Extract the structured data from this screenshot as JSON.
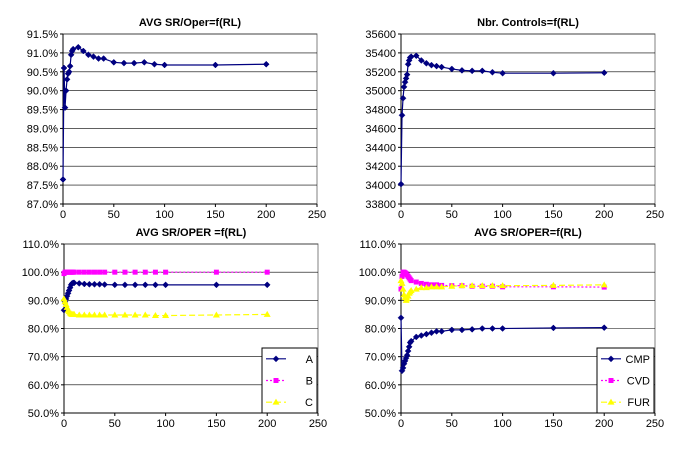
{
  "chart_data": [
    {
      "type": "line",
      "title": "AVG SR/Oper=f(RL)",
      "xlabel": "",
      "ylabel": "",
      "xlim": [
        0,
        250
      ],
      "ylim": [
        0.87,
        0.915
      ],
      "x_ticks": [
        0,
        50,
        100,
        150,
        200,
        250
      ],
      "y_ticks": [
        0.87,
        0.875,
        0.88,
        0.885,
        0.89,
        0.895,
        0.9,
        0.905,
        0.91,
        0.915
      ],
      "x_tick_labels": [
        "0",
        "50",
        "100",
        "150",
        "200",
        "250"
      ],
      "y_tick_labels": [
        "87.0%",
        "87.5%",
        "88.0%",
        "88.5%",
        "89.0%",
        "89.5%",
        "90.0%",
        "90.5%",
        "91.0%",
        "91.5%"
      ],
      "grid": "horizontal",
      "legend": "none",
      "series": [
        {
          "name": "",
          "color": "#000080",
          "marker": "diamond",
          "line_style": "solid",
          "x": [
            0,
            1,
            2,
            3,
            4,
            5,
            6,
            7,
            8,
            9,
            10,
            15,
            20,
            25,
            30,
            35,
            40,
            50,
            60,
            70,
            80,
            90,
            100,
            150,
            200
          ],
          "y": [
            0.8765,
            0.906,
            0.8955,
            0.9,
            0.903,
            0.9045,
            0.905,
            0.9065,
            0.9095,
            0.9105,
            0.911,
            0.9115,
            0.9105,
            0.9095,
            0.909,
            0.9085,
            0.9085,
            0.9075,
            0.9073,
            0.9073,
            0.9075,
            0.907,
            0.9068,
            0.9068,
            0.907
          ]
        }
      ]
    },
    {
      "type": "line",
      "title": "Nbr. Controls=f(RL)",
      "xlabel": "",
      "ylabel": "",
      "xlim": [
        0,
        250
      ],
      "ylim": [
        33800,
        35600
      ],
      "x_ticks": [
        0,
        50,
        100,
        150,
        200,
        250
      ],
      "y_ticks": [
        33800,
        34000,
        34200,
        34400,
        34600,
        34800,
        35000,
        35200,
        35400,
        35600
      ],
      "x_tick_labels": [
        "0",
        "50",
        "100",
        "150",
        "200",
        "250"
      ],
      "y_tick_labels": [
        "33800",
        "34000",
        "34200",
        "34400",
        "34600",
        "34800",
        "35000",
        "35200",
        "35400",
        "35600"
      ],
      "grid": "horizontal",
      "legend": "none",
      "series": [
        {
          "name": "",
          "color": "#000080",
          "marker": "diamond",
          "line_style": "solid",
          "x": [
            0,
            1,
            2,
            3,
            4,
            5,
            6,
            7,
            8,
            9,
            10,
            15,
            20,
            25,
            30,
            35,
            40,
            50,
            60,
            70,
            80,
            90,
            100,
            150,
            200
          ],
          "y": [
            34010,
            34740,
            34920,
            35040,
            35090,
            35130,
            35170,
            35280,
            35320,
            35350,
            35360,
            35370,
            35320,
            35290,
            35270,
            35260,
            35250,
            35230,
            35215,
            35210,
            35210,
            35195,
            35185,
            35185,
            35190
          ]
        }
      ]
    },
    {
      "type": "line",
      "title": "AVG SR/OPER =f(RL)",
      "xlabel": "",
      "ylabel": "",
      "xlim": [
        0,
        250
      ],
      "ylim": [
        0.5,
        1.1
      ],
      "x_ticks": [
        0,
        50,
        100,
        150,
        200,
        250
      ],
      "y_ticks": [
        0.5,
        0.6,
        0.7,
        0.8,
        0.9,
        1.0,
        1.1
      ],
      "x_tick_labels": [
        "0",
        "50",
        "100",
        "150",
        "200",
        "250"
      ],
      "y_tick_labels": [
        "50.0%",
        "60.0%",
        "70.0%",
        "80.0%",
        "90.0%",
        "100.0%",
        "110.0%"
      ],
      "grid": "horizontal",
      "legend": "bottom-right",
      "series": [
        {
          "name": "A",
          "color": "#000080",
          "marker": "diamond",
          "line_style": "solid",
          "x": [
            0,
            1,
            2,
            3,
            4,
            5,
            6,
            7,
            8,
            9,
            10,
            15,
            20,
            25,
            30,
            35,
            40,
            50,
            60,
            70,
            80,
            90,
            100,
            150,
            200
          ],
          "y": [
            0.865,
            0.895,
            0.905,
            0.915,
            0.925,
            0.935,
            0.945,
            0.955,
            0.96,
            0.962,
            0.962,
            0.96,
            0.958,
            0.957,
            0.957,
            0.957,
            0.956,
            0.955,
            0.955,
            0.955,
            0.955,
            0.955,
            0.955,
            0.955,
            0.955
          ]
        },
        {
          "name": "B",
          "color": "#ff00ff",
          "marker": "square",
          "line_style": "dotted",
          "x": [
            0,
            1,
            2,
            3,
            4,
            5,
            6,
            7,
            8,
            9,
            10,
            15,
            20,
            25,
            30,
            35,
            40,
            50,
            60,
            70,
            80,
            90,
            100,
            150,
            200
          ],
          "y": [
            0.995,
            1.0,
            1.0,
            1.0,
            1.0,
            1.0,
            1.0,
            1.0,
            1.0,
            1.0,
            1.0,
            1.0,
            1.0,
            1.0,
            1.0,
            1.0,
            1.0,
            1.0,
            1.0,
            1.0,
            1.0,
            1.0,
            1.0,
            1.0,
            1.0
          ]
        },
        {
          "name": "C",
          "color": "#ffff00",
          "marker": "triangle",
          "line_style": "dashed",
          "x": [
            0,
            1,
            2,
            3,
            4,
            5,
            6,
            7,
            8,
            9,
            10,
            15,
            20,
            25,
            30,
            35,
            40,
            50,
            60,
            70,
            80,
            90,
            100,
            150,
            200
          ],
          "y": [
            0.905,
            0.895,
            0.885,
            0.875,
            0.865,
            0.86,
            0.855,
            0.852,
            0.85,
            0.85,
            0.85,
            0.848,
            0.848,
            0.848,
            0.848,
            0.848,
            0.848,
            0.848,
            0.848,
            0.848,
            0.848,
            0.846,
            0.846,
            0.848,
            0.85
          ]
        }
      ]
    },
    {
      "type": "line",
      "title": "AVG SR/OPER=f(RL)",
      "xlabel": "",
      "ylabel": "",
      "xlim": [
        0,
        250
      ],
      "ylim": [
        0.5,
        1.1
      ],
      "x_ticks": [
        0,
        50,
        100,
        150,
        200,
        250
      ],
      "y_ticks": [
        0.5,
        0.6,
        0.7,
        0.8,
        0.9,
        1.0,
        1.1
      ],
      "x_tick_labels": [
        "0",
        "50",
        "100",
        "150",
        "200",
        "250"
      ],
      "y_tick_labels": [
        "50.0%",
        "60.0%",
        "70.0%",
        "80.0%",
        "90.0%",
        "100.0%",
        "110.0%"
      ],
      "grid": "horizontal",
      "legend": "bottom-right",
      "series": [
        {
          "name": "CMP",
          "color": "#000080",
          "marker": "diamond",
          "line_style": "solid",
          "x": [
            0,
            1,
            2,
            3,
            4,
            5,
            6,
            7,
            8,
            9,
            10,
            15,
            20,
            25,
            30,
            35,
            40,
            50,
            60,
            70,
            80,
            90,
            100,
            150,
            200
          ],
          "y": [
            0.838,
            0.65,
            0.66,
            0.675,
            0.685,
            0.695,
            0.705,
            0.72,
            0.735,
            0.75,
            0.755,
            0.77,
            0.775,
            0.78,
            0.785,
            0.79,
            0.79,
            0.795,
            0.795,
            0.797,
            0.8,
            0.8,
            0.8,
            0.802,
            0.803
          ]
        },
        {
          "name": "CVD",
          "color": "#ff00ff",
          "marker": "square",
          "line_style": "dotted",
          "x": [
            0,
            1,
            2,
            3,
            4,
            5,
            6,
            7,
            8,
            9,
            10,
            15,
            20,
            25,
            30,
            35,
            40,
            50,
            60,
            70,
            80,
            90,
            100,
            150,
            200
          ],
          "y": [
            0.94,
            0.985,
            1.0,
            1.0,
            0.998,
            0.995,
            0.99,
            0.985,
            0.98,
            0.975,
            0.97,
            0.965,
            0.96,
            0.957,
            0.955,
            0.955,
            0.953,
            0.952,
            0.952,
            0.95,
            0.95,
            0.95,
            0.948,
            0.948,
            0.947
          ]
        },
        {
          "name": "FUR",
          "color": "#ffff00",
          "marker": "triangle",
          "line_style": "dashed",
          "x": [
            0,
            1,
            2,
            3,
            4,
            5,
            6,
            7,
            8,
            9,
            10,
            15,
            20,
            25,
            30,
            35,
            40,
            50,
            60,
            70,
            80,
            90,
            100,
            150,
            200
          ],
          "y": [
            0.97,
            0.96,
            0.94,
            0.92,
            0.91,
            0.9,
            0.905,
            0.915,
            0.925,
            0.93,
            0.935,
            0.94,
            0.945,
            0.945,
            0.948,
            0.948,
            0.948,
            0.95,
            0.952,
            0.952,
            0.952,
            0.952,
            0.952,
            0.953,
            0.955
          ]
        }
      ]
    }
  ]
}
